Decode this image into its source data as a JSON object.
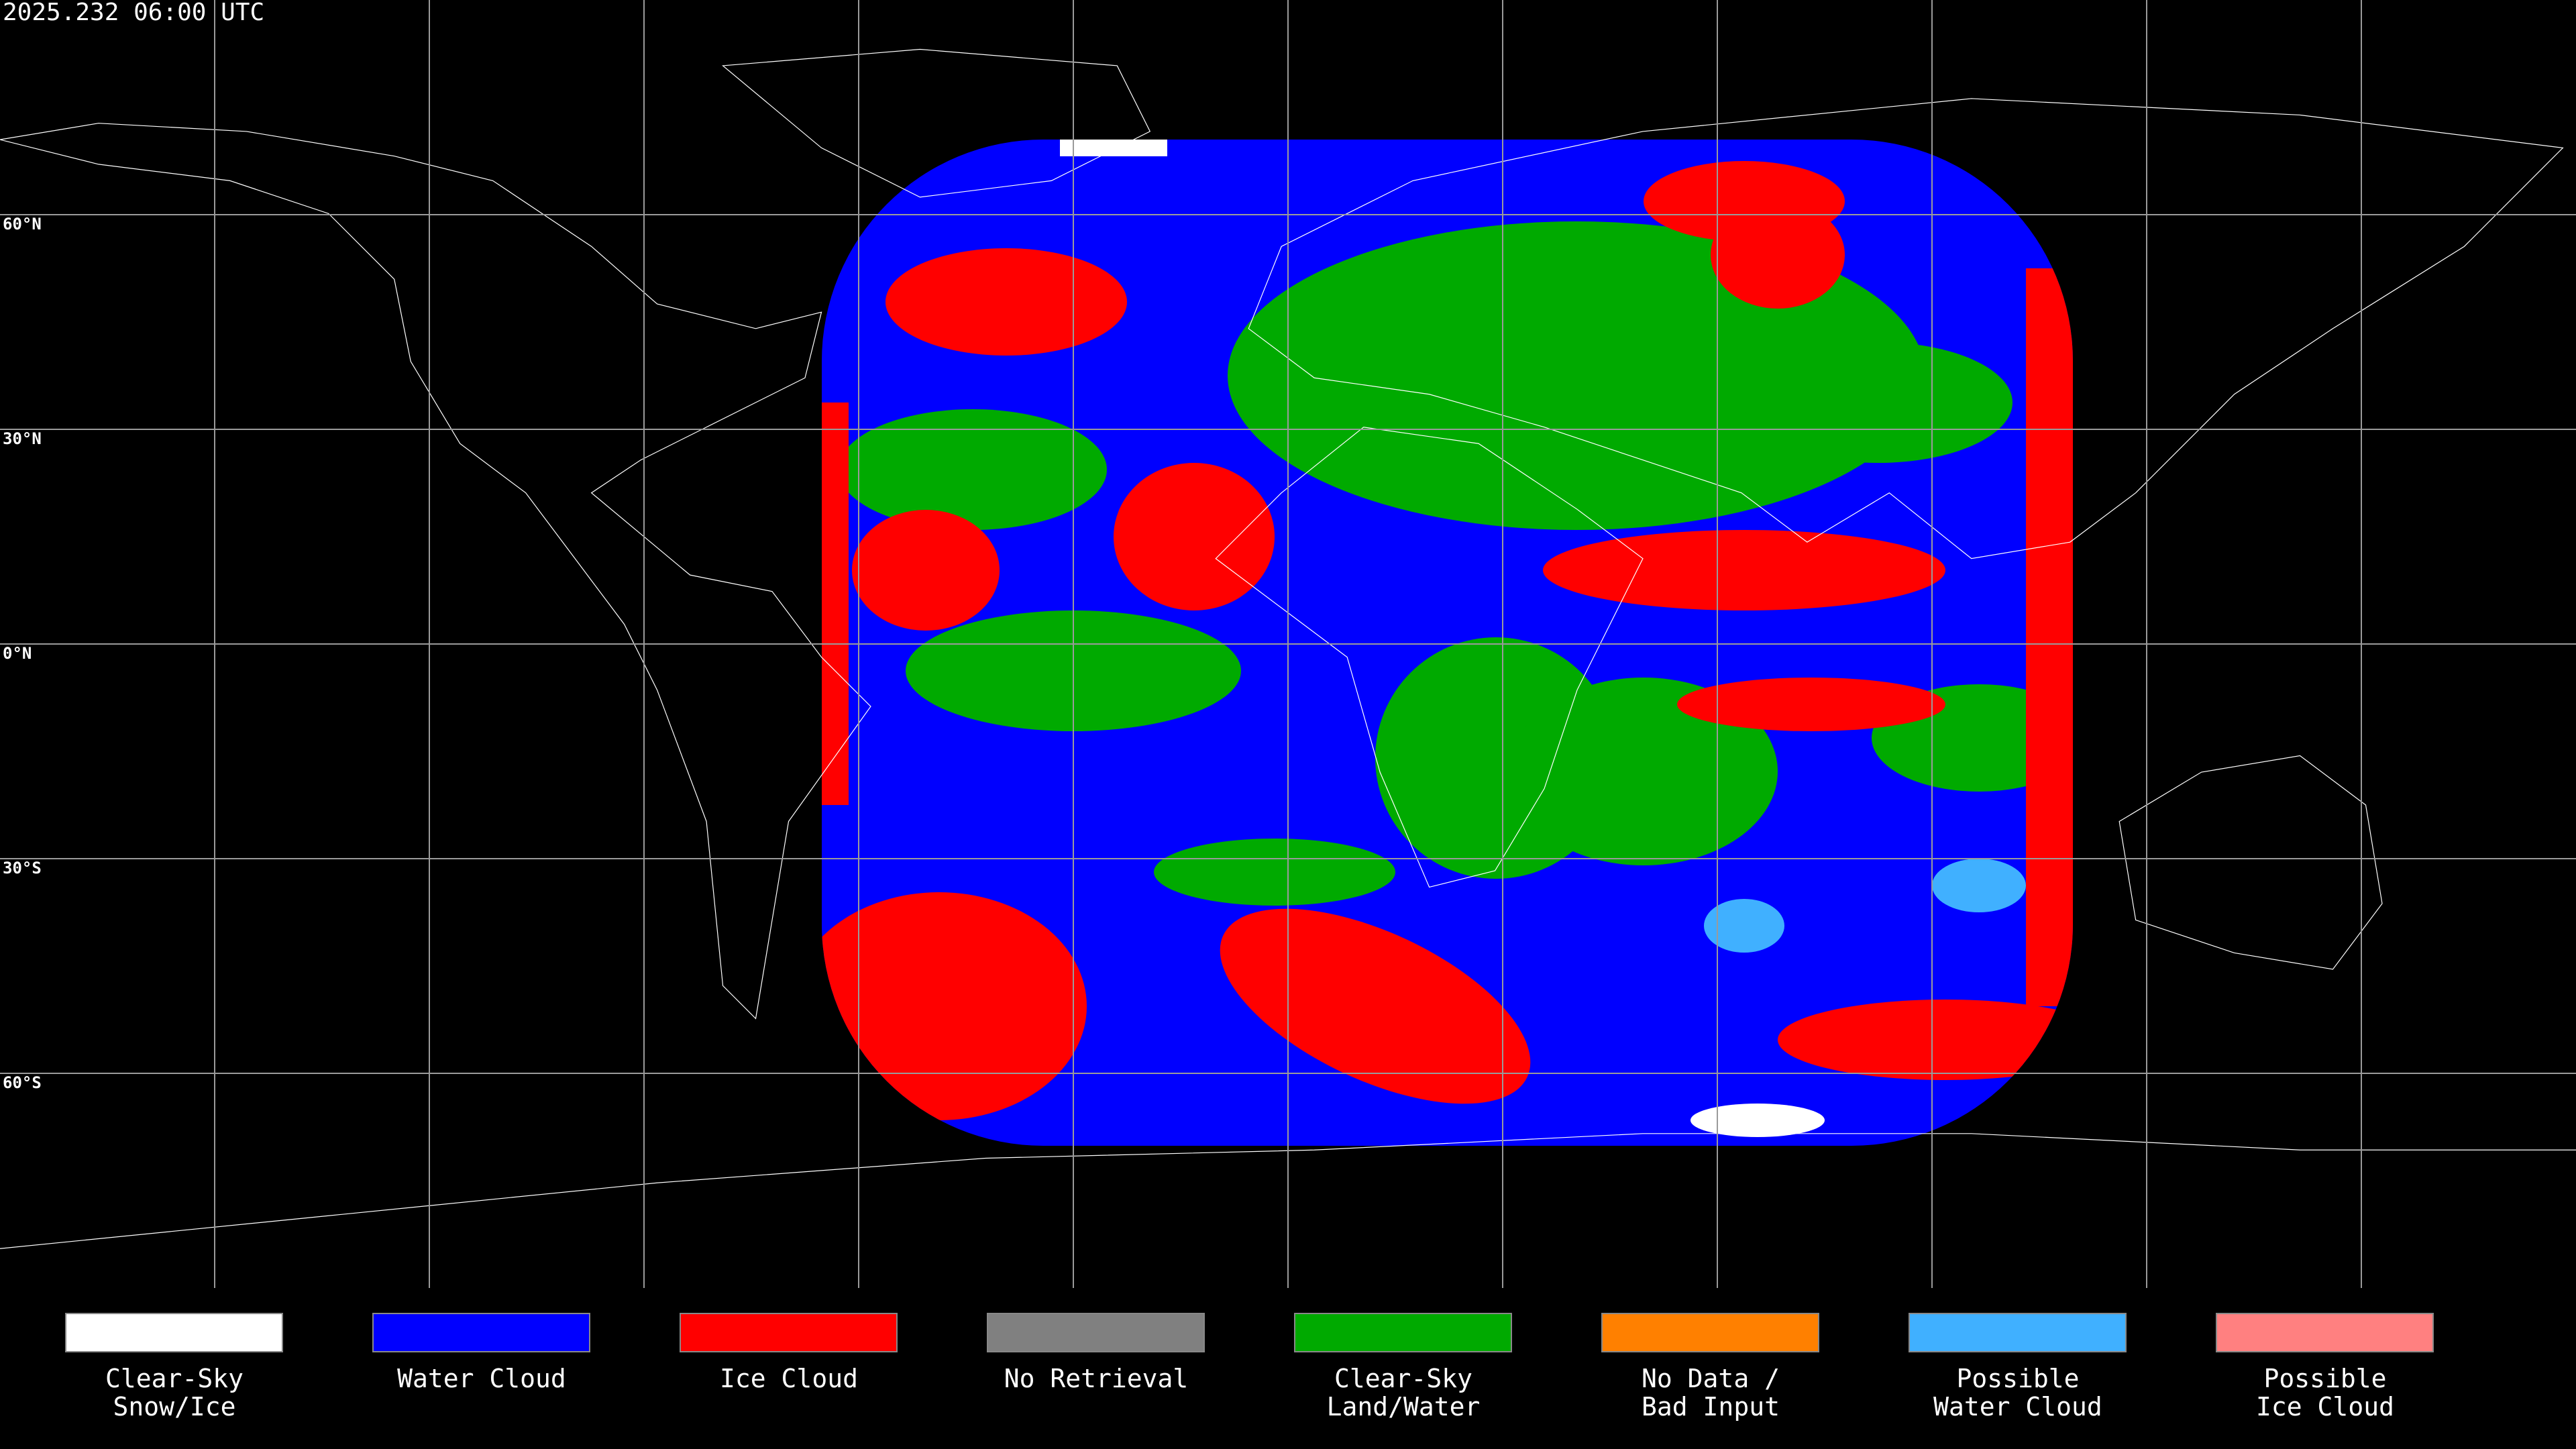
{
  "header": {
    "timestamp": "2025.232 06:00 UTC"
  },
  "map": {
    "latitude_labels": [
      "60°N",
      "30°N",
      "0°N",
      "30°S",
      "60°S"
    ]
  },
  "legend": [
    {
      "lines": [
        "Clear-Sky",
        "Snow/Ice"
      ],
      "color": "#ffffff"
    },
    {
      "lines": [
        "Water Cloud"
      ],
      "color": "#0000ff"
    },
    {
      "lines": [
        "Ice Cloud"
      ],
      "color": "#ff0000"
    },
    {
      "lines": [
        "No Retrieval"
      ],
      "color": "#808080"
    },
    {
      "lines": [
        "Clear-Sky",
        "Land/Water"
      ],
      "color": "#00aa00"
    },
    {
      "lines": [
        "No Data /",
        "Bad Input"
      ],
      "color": "#ff8000"
    },
    {
      "lines": [
        "Possible",
        "Water Cloud"
      ],
      "color": "#40b0ff"
    },
    {
      "lines": [
        "Possible",
        "Ice Cloud"
      ],
      "color": "#ff8080"
    }
  ]
}
